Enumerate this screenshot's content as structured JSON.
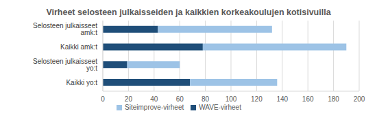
{
  "chart_data": {
    "type": "bar",
    "title": "Virheet selosteen julkaisseiden ja kaikkien korkeakoulujen kotisivuilla",
    "orientation": "horizontal",
    "stacked": true,
    "grid": true,
    "legend": "bottom",
    "categories": [
      "Selosteen julkaisseet amk:t",
      "Kaikki amk:t",
      "Selosteen julkaisseet yo:t",
      "Kaikki yo:t"
    ],
    "series": [
      {
        "name": "WAVE-virheet",
        "color": "#1f4e79",
        "values": [
          43,
          78,
          19,
          68
        ]
      },
      {
        "name": "Siteimprove-virheet",
        "color": "#9dc3e6",
        "values": [
          89,
          112,
          41,
          68
        ]
      }
    ],
    "xlim": [
      0,
      200
    ],
    "xticks": [
      0,
      20,
      40,
      60,
      80,
      100,
      120,
      140,
      160,
      180,
      200
    ]
  }
}
